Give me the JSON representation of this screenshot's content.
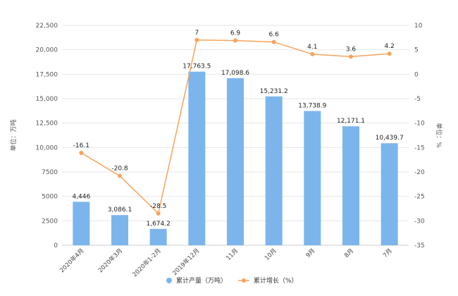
{
  "chart_data": {
    "type": "bar",
    "categories": [
      "2020年4月",
      "2020年3月",
      "2020年1-2月",
      "2019年12月",
      "11月",
      "10月",
      "9月",
      "8月",
      "7月"
    ],
    "series": [
      {
        "name": "累计产量（万吨）",
        "type": "bar",
        "axis": "left",
        "color": "#7cb5ec",
        "values": [
          4446,
          3086.1,
          1674.2,
          17763.5,
          17098.6,
          15231.2,
          13738.9,
          12171.1,
          10439.7
        ],
        "labels": [
          "4,446",
          "3,086.1",
          "1,674.2",
          "17,763.5",
          "17,098.6",
          "15,231.2",
          "13,738.9",
          "12,171.1",
          "10,439.7"
        ]
      },
      {
        "name": "累计增长（%）",
        "type": "line",
        "axis": "right",
        "color": "#f7a35c",
        "values": [
          -16.1,
          -20.8,
          -28.5,
          7,
          6.9,
          6.6,
          4.1,
          3.6,
          4.2
        ],
        "labels": [
          "-16.1",
          "-20.8",
          "-28.5",
          "7",
          "6.9",
          "6.6",
          "4.1",
          "3.6",
          "4.2"
        ]
      }
    ],
    "ylabel": "单位：万吨",
    "y2label": "单位：%",
    "ylim": [
      0,
      22500
    ],
    "y2lim": [
      -35,
      10
    ],
    "yticks": [
      "0",
      "2500",
      "5000",
      "7500",
      "10,000",
      "12,500",
      "15,000",
      "17,500",
      "20,000",
      "22,500"
    ],
    "y2ticks": [
      "-35",
      "-30",
      "-25",
      "-20",
      "-15",
      "-10",
      "-5",
      "0",
      "5",
      "10"
    ],
    "grid": true,
    "legend_position": "bottom"
  }
}
